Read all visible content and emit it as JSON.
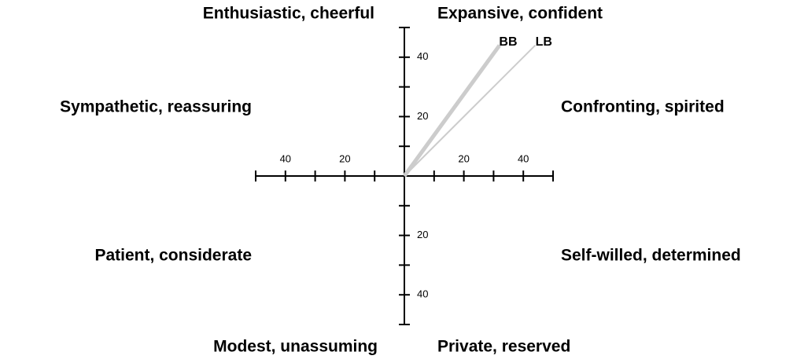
{
  "chart_data": {
    "type": "vector",
    "annotations": [
      "Enthusiastic, cheerful",
      "Expansive, confident",
      "Sympathetic, reassuring",
      "Confronting, spirited",
      "Patient, considerate",
      "Self-willed, determined",
      "Modest, unassuming",
      "Private, reserved"
    ],
    "xlim": [
      -50,
      50
    ],
    "ylim": [
      -50,
      50
    ],
    "xticks": [
      {
        "value": -40,
        "label": "40"
      },
      {
        "value": -20,
        "label": "20"
      },
      20,
      40
    ],
    "yticks": [
      40,
      20,
      {
        "value": -20,
        "label": "20"
      },
      {
        "value": -40,
        "label": "40"
      }
    ],
    "xminor": [
      -50,
      -30,
      -10,
      10,
      30,
      50
    ],
    "yminor": [
      50,
      30,
      10,
      -10,
      -30,
      -50
    ],
    "series": [
      {
        "name": "BB",
        "color": "#cccccc",
        "x": 32,
        "y": 44
      },
      {
        "name": "LB",
        "color": "#cccccc",
        "x": 44,
        "y": 44
      }
    ]
  }
}
